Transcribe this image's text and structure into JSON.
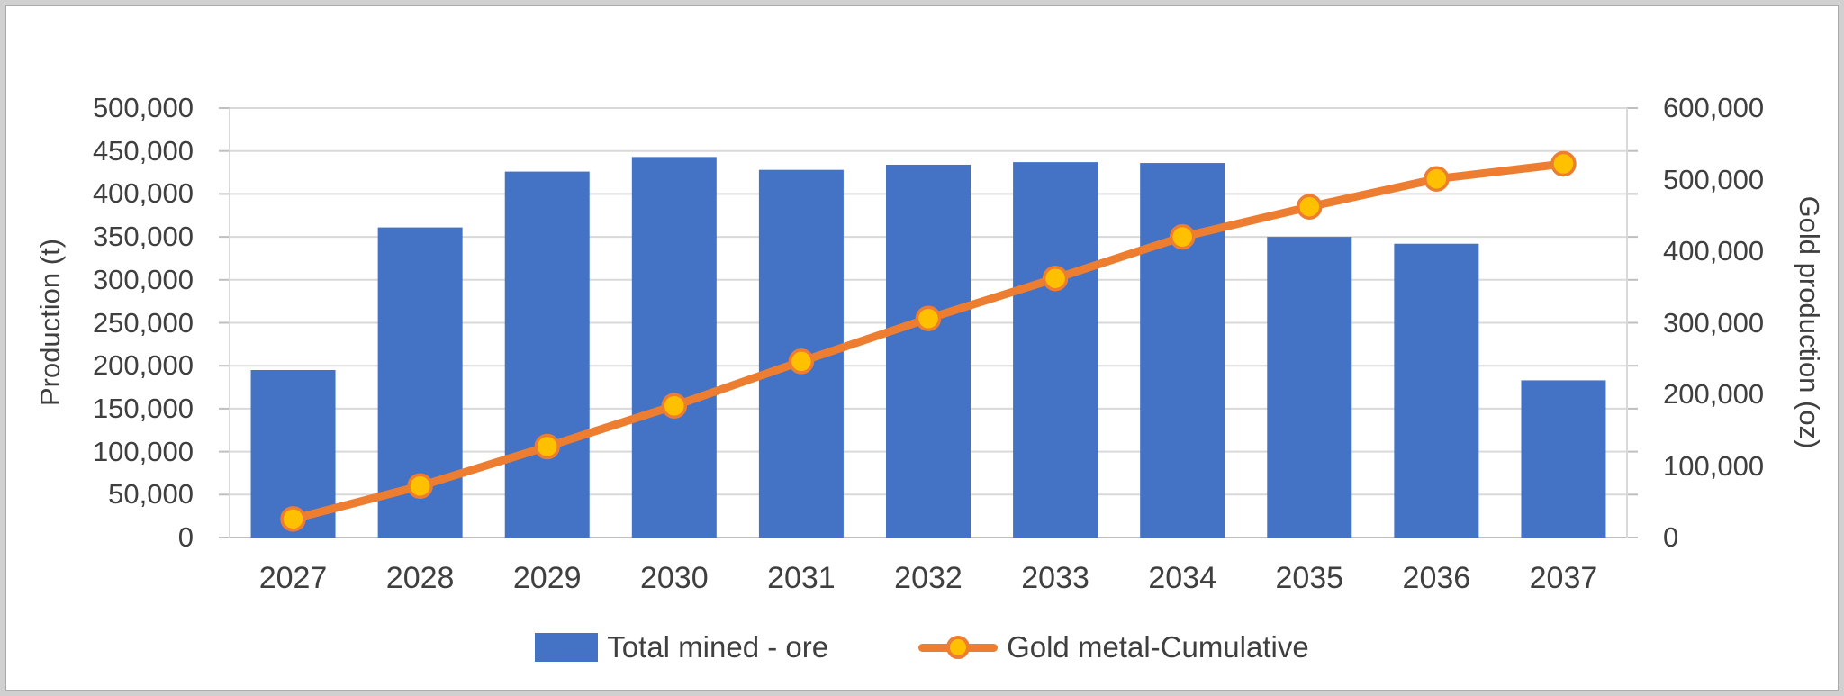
{
  "chart": {
    "background": "#FFFFFF",
    "text_color": "#3F3F3F",
    "gridline_color": "#D9D9D9",
    "axis_line_color": "#BFBFBF",
    "frame_border_color": "#D0D0D0"
  },
  "left_axis": {
    "title": "Production (t)",
    "tick_labels": [
      "500,000",
      "450,000",
      "400,000",
      "350,000",
      "300,000",
      "250,000",
      "200,000",
      "150,000",
      "100,000",
      "50,000",
      "0"
    ]
  },
  "right_axis": {
    "title": "Gold production (oz)",
    "tick_labels": [
      "600,000",
      "500,000",
      "400,000",
      "300,000",
      "200,000",
      "100,000",
      "0"
    ]
  },
  "x_axis": {
    "labels": [
      "2027",
      "2028",
      "2029",
      "2030",
      "2031",
      "2032",
      "2033",
      "2034",
      "2035",
      "2036",
      "2037"
    ]
  },
  "legend": {
    "items": [
      {
        "label": "Total mined - ore",
        "swatch": "bar",
        "color": "#4472C4"
      },
      {
        "label": "Gold metal-Cumulative",
        "swatch": "line-marker",
        "line_color": "#ED7D31",
        "marker_color": "#FFC000"
      }
    ]
  },
  "chart_data": {
    "type": "combo (bar + line, dual axis)",
    "title": "",
    "categories": [
      "2027",
      "2028",
      "2029",
      "2030",
      "2031",
      "2032",
      "2033",
      "2034",
      "2035",
      "2036",
      "2037"
    ],
    "series": [
      {
        "name": "Total mined - ore",
        "type": "bar",
        "axis": "left",
        "color": "#4472C4",
        "values": [
          195000,
          361000,
          426000,
          443000,
          428000,
          434000,
          437000,
          436000,
          350000,
          342000,
          183000
        ]
      },
      {
        "name": "Gold metal-Cumulative",
        "type": "line",
        "axis": "right",
        "color": "#ED7D31",
        "marker_color": "#FFC000",
        "marker_border_color": "#ED7D31",
        "values": [
          26000,
          72000,
          127000,
          184000,
          246000,
          306000,
          362000,
          420000,
          462000,
          501000,
          522000
        ]
      }
    ],
    "xlabel": "",
    "ylabel_left": "Production (t)",
    "ylabel_right": "Gold production (oz)",
    "ylim_left": [
      0,
      500000
    ],
    "ylim_right": [
      0,
      600000
    ],
    "left_tick_step": 50000,
    "right_tick_step": 100000,
    "grid": true,
    "legend_position": "bottom"
  }
}
